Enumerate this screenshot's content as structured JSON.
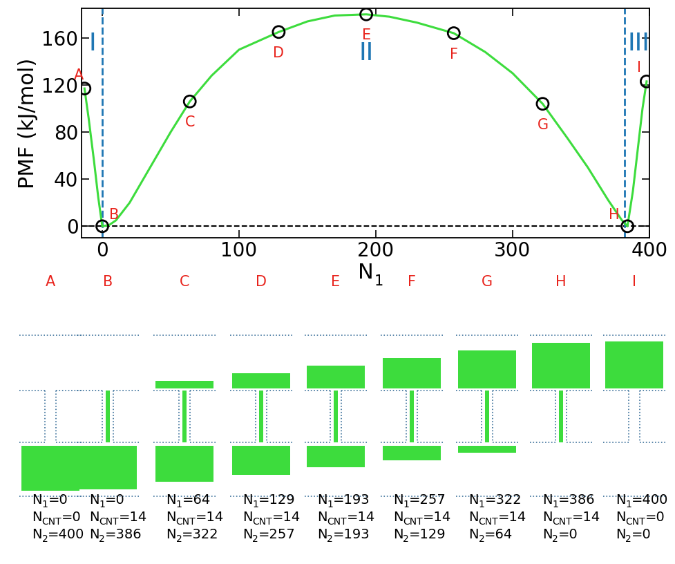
{
  "chart_data": {
    "type": "line",
    "y_label": "PMF (kJ/mol)",
    "x_label": {
      "symbol": "N",
      "sub": "1"
    },
    "xlim": [
      -15,
      400
    ],
    "ylim": [
      -10,
      185
    ],
    "xticks": [
      0,
      100,
      200,
      300,
      400
    ],
    "yticks": [
      0,
      40,
      80,
      120,
      160
    ],
    "color": "#3ddc3d",
    "x": [
      -13,
      -10,
      -6,
      -3,
      0,
      5,
      10,
      20,
      30,
      40,
      50,
      64,
      80,
      100,
      129,
      150,
      170,
      193,
      210,
      230,
      257,
      280,
      300,
      322,
      340,
      355,
      370,
      380,
      384,
      388,
      392,
      395,
      398
    ],
    "values": [
      117,
      92,
      55,
      25,
      0,
      1,
      5,
      20,
      40,
      60,
      80,
      106,
      128,
      150,
      165,
      174,
      179,
      180,
      178,
      173,
      164,
      148,
      130,
      104,
      75,
      50,
      22,
      5,
      0,
      30,
      70,
      100,
      123
    ],
    "boundaries": [
      0,
      382
    ],
    "baseline": 0,
    "points": [
      {
        "label": "A",
        "x": -13,
        "y": 117
      },
      {
        "label": "B",
        "x": 0,
        "y": 0
      },
      {
        "label": "C",
        "x": 64,
        "y": 106
      },
      {
        "label": "D",
        "x": 129,
        "y": 165
      },
      {
        "label": "E",
        "x": 193,
        "y": 180
      },
      {
        "label": "F",
        "x": 257,
        "y": 164
      },
      {
        "label": "G",
        "x": 322,
        "y": 104
      },
      {
        "label": "H",
        "x": 384,
        "y": 0
      },
      {
        "label": "I",
        "x": 398,
        "y": 123
      }
    ],
    "regions": [
      {
        "label": "I",
        "x": -7,
        "y": 155
      },
      {
        "label": "II",
        "x": 193,
        "y": 147
      },
      {
        "label": "III",
        "x": 392,
        "y": 155
      }
    ]
  },
  "snapshots": {
    "separator": "=",
    "quantities": [
      {
        "symbol": "N",
        "sub": "1"
      },
      {
        "symbol": "N",
        "sub": "CNT"
      },
      {
        "symbol": "N",
        "sub": "2"
      }
    ],
    "panels": [
      {
        "label": "A",
        "values": [
          0,
          0,
          400
        ]
      },
      {
        "label": "B",
        "values": [
          0,
          14,
          386
        ]
      },
      {
        "label": "C",
        "values": [
          64,
          14,
          322
        ]
      },
      {
        "label": "D",
        "values": [
          129,
          14,
          257
        ]
      },
      {
        "label": "E",
        "values": [
          193,
          14,
          193
        ]
      },
      {
        "label": "F",
        "values": [
          257,
          14,
          129
        ]
      },
      {
        "label": "G",
        "values": [
          322,
          14,
          64
        ]
      },
      {
        "label": "H",
        "values": [
          386,
          14,
          0
        ]
      },
      {
        "label": "I",
        "values": [
          400,
          0,
          0
        ]
      }
    ]
  }
}
